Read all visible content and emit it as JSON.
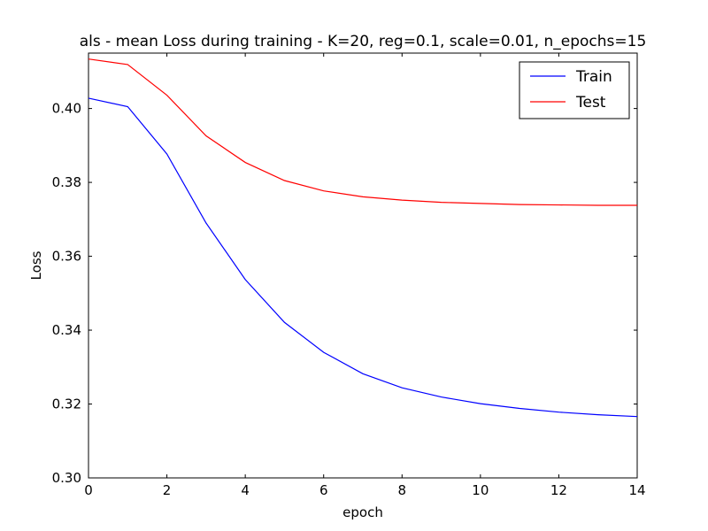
{
  "chart_data": {
    "type": "line",
    "title": "als - mean Loss during training - K=20, reg=0.1, scale=0.01, n_epochs=15",
    "xlabel": "epoch",
    "ylabel": "Loss",
    "xlim": [
      0,
      14
    ],
    "ylim": [
      0.3,
      0.415
    ],
    "xticks": [
      0,
      2,
      4,
      6,
      8,
      10,
      12,
      14
    ],
    "xtick_labels": [
      "0",
      "2",
      "4",
      "6",
      "8",
      "10",
      "12",
      "14"
    ],
    "yticks": [
      0.3,
      0.32,
      0.34,
      0.36,
      0.38,
      0.4
    ],
    "ytick_labels": [
      "0.30",
      "0.32",
      "0.34",
      "0.36",
      "0.38",
      "0.40"
    ],
    "grid": false,
    "legend_position": "top-right",
    "x": [
      0,
      1,
      2,
      3,
      4,
      5,
      6,
      7,
      8,
      9,
      10,
      11,
      12,
      13,
      14
    ],
    "series": [
      {
        "name": "Train",
        "color": "#0000ff",
        "values": [
          0.4028,
          0.4005,
          0.3877,
          0.369,
          0.3537,
          0.3421,
          0.334,
          0.3282,
          0.3244,
          0.3219,
          0.3201,
          0.3188,
          0.3178,
          0.3171,
          0.3166
        ]
      },
      {
        "name": "Test",
        "color": "#ff0000",
        "values": [
          0.4134,
          0.4119,
          0.4036,
          0.3926,
          0.3854,
          0.3805,
          0.3777,
          0.3761,
          0.3752,
          0.3746,
          0.3743,
          0.374,
          0.3739,
          0.3738,
          0.3738
        ]
      }
    ]
  }
}
